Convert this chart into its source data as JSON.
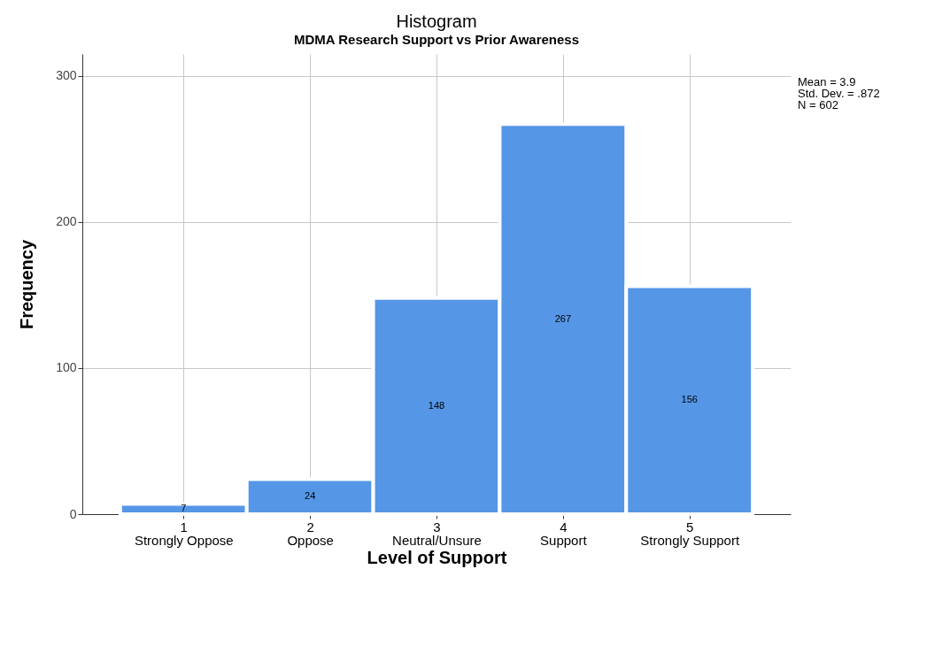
{
  "chart_data": {
    "type": "histogram",
    "title": "Histogram",
    "subtitle": "MDMA Research Support vs Prior Awareness",
    "xlabel": "Level of Support",
    "ylabel": "Frequency",
    "bins": [
      0.5,
      1.5,
      2.5,
      3.5,
      4.5,
      5.5
    ],
    "values": [
      7,
      24,
      148,
      267,
      156
    ],
    "color": "#5596e6",
    "xlim": [
      0.2,
      5.8
    ],
    "xticks": [
      {
        "value": 1,
        "label": "1\nStrongly Oppose"
      },
      {
        "value": 2,
        "label": "2\nOppose"
      },
      {
        "value": 3,
        "label": "3\nNeutral/Unsure"
      },
      {
        "value": 4,
        "label": "4\nSupport"
      },
      {
        "value": 5,
        "label": "5\nStrongly Support"
      }
    ],
    "ylim": [
      0,
      315
    ],
    "yticks": [
      0,
      100,
      200,
      300
    ],
    "grid": true,
    "data_labels": true,
    "annotations": [
      "Mean = 3.9",
      "Std. Dev. = .872",
      "N = 602"
    ]
  }
}
